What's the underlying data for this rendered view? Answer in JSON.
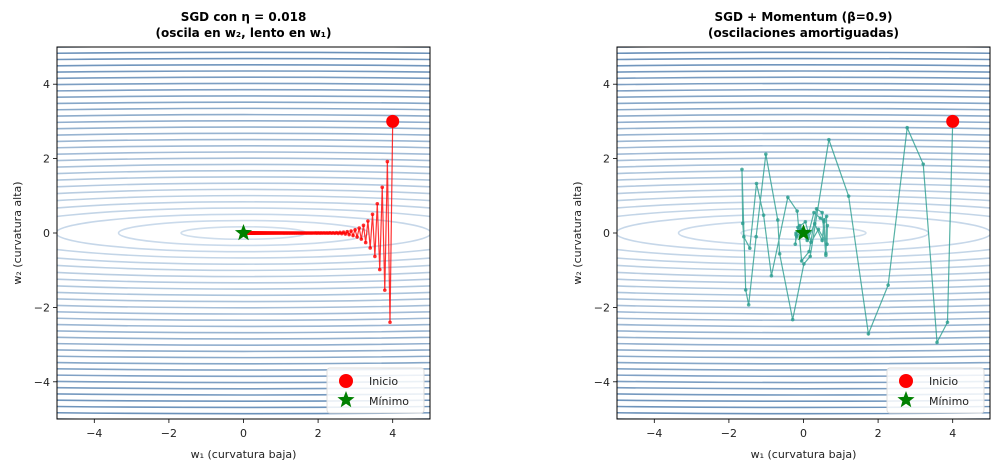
{
  "chart_data": [
    {
      "type": "line",
      "panel": "left",
      "title_line1": "SGD con η = 0.018",
      "title_line2": "(oscila en w₂, lento en w₁)",
      "xlabel": "w₁ (curvatura baja)",
      "ylabel": "w₂ (curvatura alta)",
      "xlim": [
        -5,
        5
      ],
      "ylim": [
        -5,
        5
      ],
      "xticks": [
        -4,
        -2,
        0,
        2,
        4
      ],
      "yticks": [
        -4,
        -2,
        0,
        2,
        4
      ],
      "path_color": "#ff0000",
      "series": [
        {
          "name": "SGD",
          "generated_from": {
            "w1_0": 4,
            "w2_0": 3,
            "w1_factor": 0.982,
            "w2_factor": -0.8,
            "steps": 200
          },
          "x": [],
          "y": []
        }
      ],
      "start": {
        "x": 4,
        "y": 3,
        "label": "Inicio",
        "color": "#ff0000"
      },
      "minimum": {
        "x": 0,
        "y": 0,
        "label": "Mínimo",
        "color": "#008000"
      },
      "contours": {
        "function": "0.5*(w1^2 + 100*w2^2)",
        "colormap": "Blues",
        "levels": 30
      },
      "legend": {
        "location": "lower-right",
        "entries": [
          "Inicio",
          "Mínimo"
        ]
      }
    },
    {
      "type": "line",
      "panel": "right",
      "title_line1": "SGD + Momentum (β=0.9)",
      "title_line2": "(oscilaciones amortiguadas)",
      "xlabel": "w₁ (curvatura baja)",
      "ylabel": "w₂ (curvatura alta)",
      "xlim": [
        -5,
        5
      ],
      "ylim": [
        -5,
        5
      ],
      "xticks": [
        -4,
        -2,
        0,
        2,
        4
      ],
      "yticks": [
        -4,
        -2,
        0,
        2,
        4
      ],
      "path_color": "#2a9d8f",
      "series": [
        {
          "name": "Momentum",
          "x": [
            4.0,
            3.86,
            3.58,
            3.21,
            2.78,
            2.27,
            1.74,
            1.21,
            0.68,
            0.18,
            0.01,
            -0.29,
            -0.64,
            -0.69,
            -1.01,
            -1.27,
            -1.47,
            -1.55,
            -1.65,
            -1.63,
            -1.6,
            -1.44,
            -1.26,
            -1.07,
            -0.86,
            -0.42,
            -0.17,
            -0.05,
            0.15,
            0.35,
            0.5,
            0.6,
            0.62,
            0.55,
            0.6,
            0.64,
            0.63,
            0.4,
            0.2,
            0.05,
            -0.15,
            -0.22,
            -0.2,
            -0.1,
            0.1,
            0.28,
            0.45,
            0.55,
            0.5,
            0.3,
            0.1,
            -0.08,
            -0.2,
            -0.18,
            -0.05,
            0.08,
            0.15,
            0.12,
            0.02,
            -0.05,
            -0.06,
            -0.02,
            0.0
          ],
          "y": [
            3.0,
            -2.4,
            -2.94,
            1.85,
            2.83,
            -1.4,
            -2.71,
            0.99,
            2.51,
            -0.63,
            -0.83,
            -2.33,
            -0.56,
            0.35,
            2.12,
            -0.1,
            -1.93,
            -1.53,
            1.71,
            0.26,
            -0.1,
            -0.41,
            1.33,
            0.48,
            -1.15,
            0.96,
            0.59,
            -0.75,
            -0.5,
            0.65,
            0.55,
            -0.6,
            0.45,
            0.35,
            -0.55,
            0.2,
            -0.3,
            0.1,
            -0.25,
            0.3,
            0.15,
            -0.3,
            -0.05,
            0.2,
            -0.15,
            0.55,
            0.4,
            0.3,
            -0.2,
            0.25,
            -0.2,
            0.1,
            0.0,
            -0.1,
            0.08,
            -0.05,
            0.05,
            0.02,
            -0.03,
            0.02,
            0.0,
            0.01,
            0.0
          ]
        }
      ],
      "start": {
        "x": 4,
        "y": 3,
        "label": "Inicio",
        "color": "#ff0000"
      },
      "minimum": {
        "x": 0,
        "y": 0,
        "label": "Mínimo",
        "color": "#008000"
      },
      "contours": {
        "function": "0.5*(w1^2 + 100*w2^2)",
        "colormap": "Blues",
        "levels": 30
      },
      "legend": {
        "location": "lower-right",
        "entries": [
          "Inicio",
          "Mínimo"
        ]
      }
    }
  ]
}
